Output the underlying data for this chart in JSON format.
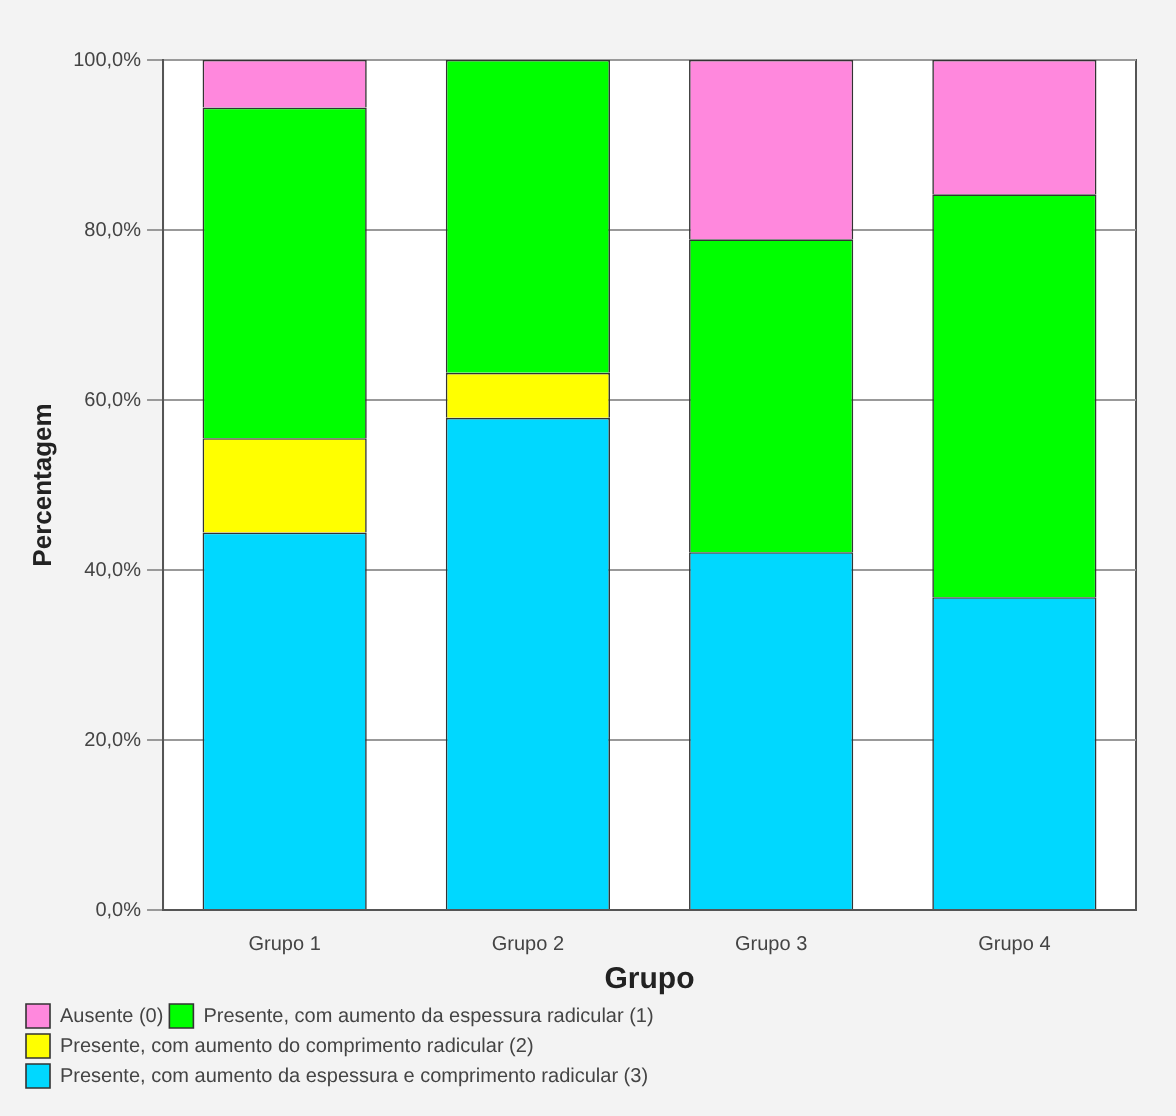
{
  "chart_data": {
    "type": "bar",
    "stacked": true,
    "xlabel": "Grupo",
    "ylabel": "Percentagem",
    "categories": [
      "Grupo 1",
      "Grupo 2",
      "Grupo 3",
      "Grupo 4"
    ],
    "series": [
      {
        "name": "Presente, com aumento da espessura e comprimento radicular (3)",
        "color": "#00d8ff",
        "values": [
          44.4,
          57.9,
          42.1,
          36.8
        ]
      },
      {
        "name": "Presente, com aumento do comprimento radicular (2)",
        "color": "#ffff00",
        "values": [
          11.1,
          5.3,
          0,
          0
        ]
      },
      {
        "name": "Presente, com aumento da espessura radicular (1)",
        "color": "#00ff00",
        "values": [
          38.9,
          36.8,
          36.8,
          47.4
        ]
      },
      {
        "name": "Ausente (0)",
        "color": "#ff88dd",
        "values": [
          5.6,
          0,
          21.1,
          15.8
        ]
      }
    ],
    "ylim": [
      0,
      100
    ],
    "yticks": [
      {
        "value": 0,
        "label": "0,0%"
      },
      {
        "value": 20,
        "label": "20,0%"
      },
      {
        "value": 40,
        "label": "40,0%"
      },
      {
        "value": 60,
        "label": "60,0%"
      },
      {
        "value": 80,
        "label": "80,0%"
      },
      {
        "value": 100,
        "label": "100,0%"
      }
    ],
    "grid": "y",
    "legend": "bottom"
  }
}
